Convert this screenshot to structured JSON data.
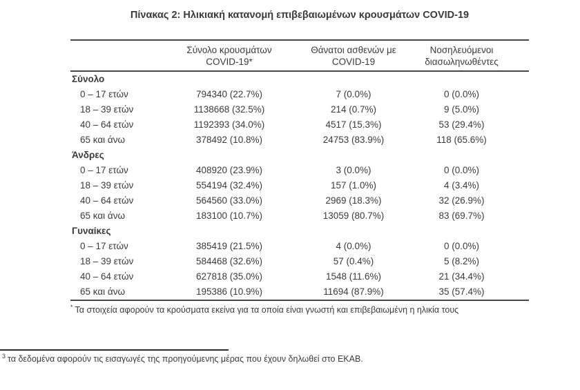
{
  "title": "Πίνακας 2: Ηλικιακή κατανομή επιβεβαιωμένων κρουσμάτων COVID-19",
  "table": {
    "headers": [
      "",
      "Σύνολο κρουσμάτων\nCOVID-19*",
      "Θάνατοι ασθενών με\nCOVID-19",
      "Νοσηλευόμενοι\nδιασωληνωθέντες"
    ],
    "sections": [
      {
        "name": "Σύνολο",
        "rows": [
          {
            "age": "0 – 17 ετών",
            "cases": "794340 (22.7%)",
            "deaths": "7 (0.0%)",
            "intubated": "0 (0.0%)"
          },
          {
            "age": "18 – 39 ετών",
            "cases": "1138668 (32.5%)",
            "deaths": "214 (0.7%)",
            "intubated": "9 (5.0%)"
          },
          {
            "age": "40 – 64 ετών",
            "cases": "1192393 (34.0%)",
            "deaths": "4517 (15.3%)",
            "intubated": "53 (29.4%)"
          },
          {
            "age": "65 και άνω",
            "cases": "378492 (10.8%)",
            "deaths": "24753 (83.9%)",
            "intubated": "118 (65.6%)"
          }
        ]
      },
      {
        "name": "Άνδρες",
        "rows": [
          {
            "age": "0 – 17 ετών",
            "cases": "408920 (23.9%)",
            "deaths": "3 (0.0%)",
            "intubated": "0 (0.0%)"
          },
          {
            "age": "18 – 39 ετών",
            "cases": "554194 (32.4%)",
            "deaths": "157 (1.0%)",
            "intubated": "4 (3.4%)"
          },
          {
            "age": "40 – 64 ετών",
            "cases": "564560 (33.0%)",
            "deaths": "2969 (18.3%)",
            "intubated": "32 (26.9%)"
          },
          {
            "age": "65 και άνω",
            "cases": "183100 (10.7%)",
            "deaths": "13059 (80.7%)",
            "intubated": "83 (69.7%)"
          }
        ]
      },
      {
        "name": "Γυναίκες",
        "rows": [
          {
            "age": "0 – 17 ετών",
            "cases": "385419 (21.5%)",
            "deaths": "4 (0.0%)",
            "intubated": "0 (0.0%)"
          },
          {
            "age": "18 – 39 ετών",
            "cases": "584468 (32.6%)",
            "deaths": "57 (0.4%)",
            "intubated": "5 (8.2%)"
          },
          {
            "age": "40 – 64 ετών",
            "cases": "627818 (35.0%)",
            "deaths": "1548 (11.6%)",
            "intubated": "21 (34.4%)"
          },
          {
            "age": "65 και άνω",
            "cases": "195386 (10.9%)",
            "deaths": "11694 (87.9%)",
            "intubated": "35 (57.4%)"
          }
        ]
      }
    ],
    "footnote_marker": "*",
    "footnote": "Τα στοιχεία αφορούν τα κρούσματα εκείνα για τα οποία είναι γνωστή και επιβεβαιωμένη η ηλικία τους"
  },
  "page_footnote": {
    "marker": "3",
    "text": "τα δεδομένα αφορούν τις εισαγωγές της προηγούμενης μέρας που έχουν δηλωθεί στο ΕΚΑΒ."
  }
}
